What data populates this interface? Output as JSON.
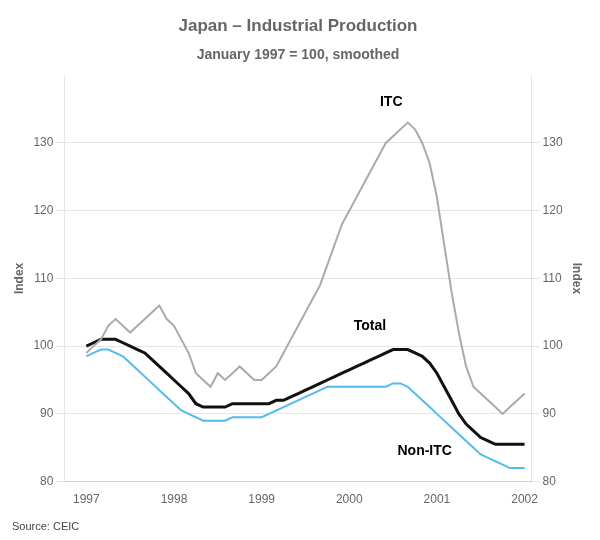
{
  "chart_data": {
    "type": "line",
    "title": "Japan – Industrial Production",
    "subtitle": "January 1997 = 100, smoothed",
    "ylabel": "Index",
    "y2label": "Index",
    "source": "Source: CEIC",
    "grid": "y",
    "xlim": [
      1996.75,
      2002.08
    ],
    "xticks": [
      1997,
      1998,
      1999,
      2000,
      2001,
      2002
    ],
    "ylim": [
      80,
      140
    ],
    "yticks": [
      80,
      90,
      100,
      110,
      120,
      130
    ],
    "y2lim": [
      80,
      140
    ],
    "y2ticks": [
      80,
      90,
      100,
      110,
      120,
      130
    ],
    "x": [
      1997.0,
      1997.083,
      1997.167,
      1997.25,
      1997.333,
      1997.417,
      1997.5,
      1997.583,
      1997.667,
      1997.75,
      1997.833,
      1997.917,
      1998.0,
      1998.083,
      1998.167,
      1998.25,
      1998.333,
      1998.417,
      1998.5,
      1998.583,
      1998.667,
      1998.75,
      1998.833,
      1998.917,
      1999.0,
      1999.083,
      1999.167,
      1999.25,
      1999.333,
      1999.417,
      1999.5,
      1999.583,
      1999.667,
      1999.75,
      1999.833,
      1999.917,
      2000.0,
      2000.083,
      2000.167,
      2000.25,
      2000.333,
      2000.417,
      2000.5,
      2000.583,
      2000.667,
      2000.75,
      2000.833,
      2000.917,
      2001.0,
      2001.083,
      2001.167,
      2001.25,
      2001.333,
      2001.417,
      2001.5,
      2001.583,
      2001.667,
      2001.75,
      2001.833,
      2001.917,
      2002.0
    ],
    "series": [
      {
        "name": "ITC",
        "color": "#aaaaaa",
        "values": [
          99,
          100,
          101,
          103,
          104,
          103,
          102,
          103,
          104,
          105,
          106,
          104,
          103,
          101,
          99,
          96,
          95,
          94,
          96,
          95,
          96,
          97,
          96,
          95,
          95,
          96,
          97,
          99,
          101,
          103,
          105,
          107,
          109,
          112,
          115,
          118,
          120,
          122,
          124,
          126,
          128,
          130,
          131,
          132,
          133,
          132,
          130,
          127,
          122,
          115,
          108,
          102,
          97,
          94,
          93,
          92,
          91,
          90,
          91,
          92,
          93
        ]
      },
      {
        "name": "Total",
        "color": "#111111",
        "values": [
          100,
          100.5,
          101,
          101,
          101,
          100.5,
          100,
          99.5,
          99,
          98,
          97,
          96,
          95,
          94,
          93,
          91.5,
          91,
          91,
          91,
          91,
          91.5,
          91.5,
          91.5,
          91.5,
          91.5,
          91.5,
          92,
          92,
          92.5,
          93,
          93.5,
          94,
          94.5,
          95,
          95.5,
          96,
          96.5,
          97,
          97.5,
          98,
          98.5,
          99,
          99.5,
          99.5,
          99.5,
          99,
          98.5,
          97.5,
          96,
          94,
          92,
          90,
          88.5,
          87.5,
          86.5,
          86,
          85.5,
          85.5,
          85.5,
          85.5,
          85.5
        ]
      },
      {
        "name": "Non-ITC",
        "color": "#55bbee",
        "values": [
          98.5,
          99,
          99.5,
          99.5,
          99,
          98.5,
          97.5,
          96.5,
          95.5,
          94.5,
          93.5,
          92.5,
          91.5,
          90.5,
          90,
          89.5,
          89,
          89,
          89,
          89,
          89.5,
          89.5,
          89.5,
          89.5,
          89.5,
          90,
          90.5,
          91,
          91.5,
          92,
          92.5,
          93,
          93.5,
          94,
          94,
          94,
          94,
          94,
          94,
          94,
          94,
          94,
          94.5,
          94.5,
          94,
          93,
          92,
          91,
          90,
          89,
          88,
          87,
          86,
          85,
          84,
          83.5,
          83,
          82.5,
          82,
          82,
          82
        ]
      }
    ],
    "annotations": [
      {
        "text": "ITC",
        "x": 2000.35,
        "y": 136
      },
      {
        "text": "Total",
        "x": 2000.05,
        "y": 103
      },
      {
        "text": "Non-ITC",
        "x": 2000.55,
        "y": 84.5
      }
    ]
  }
}
